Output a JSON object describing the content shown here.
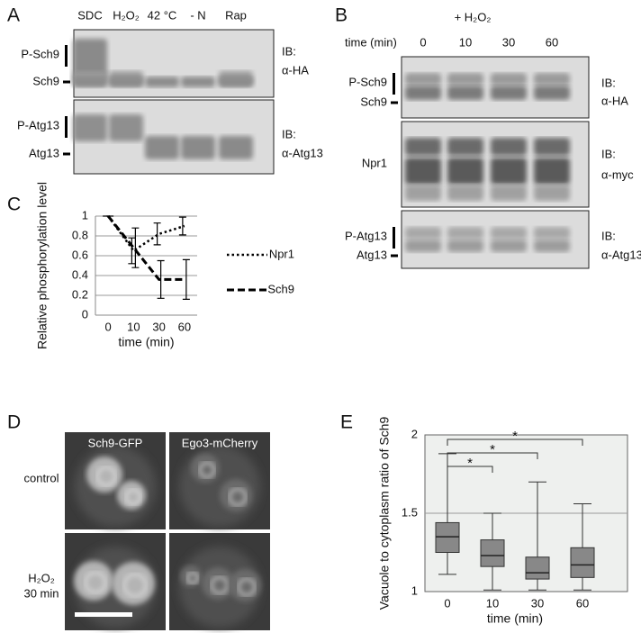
{
  "panel_a": {
    "label": "A",
    "lanes": [
      "SDC",
      "H₂O₂",
      "42 °C",
      "- N",
      "Rap"
    ],
    "blots": [
      {
        "bands": [
          "P-Sch9",
          "Sch9"
        ],
        "ib": "IB:",
        "antibody": "α-HA"
      },
      {
        "bands": [
          "P-Atg13",
          "Atg13"
        ],
        "ib": "IB:",
        "antibody": "α-Atg13"
      }
    ]
  },
  "panel_b": {
    "label": "B",
    "treatment": "+ H₂O₂",
    "time_label": "time (min)",
    "lanes": [
      "0",
      "10",
      "30",
      "60"
    ],
    "blots": [
      {
        "bands": [
          "P-Sch9",
          "Sch9"
        ],
        "ib": "IB:",
        "antibody": "α-HA"
      },
      {
        "bands": [
          "Npr1"
        ],
        "ib": "IB:",
        "antibody": "α-myc"
      },
      {
        "bands": [
          "P-Atg13",
          "Atg13"
        ],
        "ib": "IB:",
        "antibody": "α-Atg13"
      }
    ]
  },
  "panel_d": {
    "label": "D",
    "columns": [
      "Sch9-GFP",
      "Ego3-mCherry"
    ],
    "rows": [
      [
        "control"
      ],
      [
        "H₂O₂",
        "30 min"
      ]
    ]
  },
  "chart_data": [
    {
      "label": "C",
      "type": "line",
      "ylabel": "Relative phosphorylation level",
      "xlabel": "time (min)",
      "categories": [
        "0",
        "10",
        "30",
        "60"
      ],
      "ylim": [
        0,
        1
      ],
      "yticks": [
        0,
        0.2,
        0.4,
        0.6,
        0.8,
        1
      ],
      "grid": true,
      "series": [
        {
          "name": "Npr1",
          "color": "#000000",
          "dash": "dotted",
          "values": [
            1,
            0.65,
            0.82,
            0.9
          ],
          "errors": [
            0,
            0.13,
            0.11,
            0.09
          ]
        },
        {
          "name": "Sch9",
          "color": "#000000",
          "dash": "dashed",
          "values": [
            1,
            0.68,
            0.36,
            0.36
          ],
          "errors": [
            0,
            0.2,
            0.19,
            0.2
          ]
        }
      ]
    },
    {
      "label": "E",
      "type": "box",
      "ylabel": "Vacuole to cytoplasm ratio of Sch9",
      "xlabel": "time (min)",
      "categories": [
        "0",
        "10",
        "30",
        "60"
      ],
      "ylim": [
        1,
        2
      ],
      "yticks": [
        1,
        1.5,
        2
      ],
      "grid": true,
      "color": "#888888",
      "min": [
        1.11,
        1.01,
        1.01,
        1.01
      ],
      "q1": [
        1.25,
        1.16,
        1.08,
        1.09
      ],
      "median": [
        1.35,
        1.23,
        1.12,
        1.17
      ],
      "q3": [
        1.44,
        1.33,
        1.22,
        1.28
      ],
      "max": [
        1.88,
        1.5,
        1.7,
        1.56
      ],
      "annotations": [
        {
          "from": "0",
          "to": "10",
          "text": "*"
        },
        {
          "from": "0",
          "to": "30",
          "text": "*"
        },
        {
          "from": "0",
          "to": "60",
          "text": "*"
        }
      ]
    }
  ]
}
